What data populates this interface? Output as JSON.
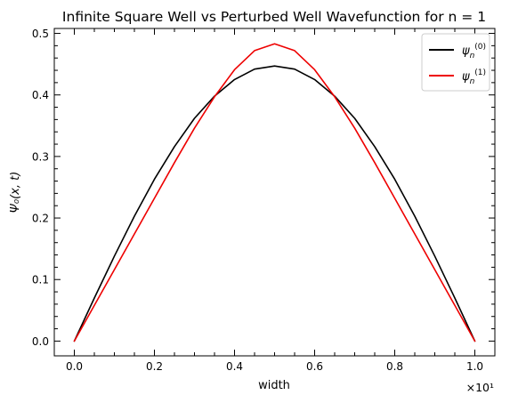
{
  "chart_data": {
    "type": "line",
    "title": "Infinite Square Well vs Perturbed Well Wavefunction for n = 1",
    "xlabel": "width",
    "ylabel": "Ψ₀(x, t)",
    "x_offset_label": "×10¹",
    "xlim": [
      -0.05,
      1.05
    ],
    "ylim": [
      -0.024,
      0.508
    ],
    "x_ticks": [
      0.0,
      0.2,
      0.4,
      0.6,
      0.8,
      1.0
    ],
    "x_tick_labels": [
      "0.0",
      "0.2",
      "0.4",
      "0.6",
      "0.8",
      "1.0"
    ],
    "y_ticks": [
      0.0,
      0.1,
      0.2,
      0.3,
      0.4,
      0.5
    ],
    "y_tick_labels": [
      "0.0",
      "0.1",
      "0.2",
      "0.3",
      "0.4",
      "0.5"
    ],
    "legend_position": "top-right",
    "grid": false,
    "series": [
      {
        "name": "ψn(0)",
        "legend_base": "ψ",
        "legend_sub": "n",
        "legend_sup": "(0)",
        "color": "#000000",
        "x": [
          0.0,
          0.05,
          0.1,
          0.15,
          0.2,
          0.25,
          0.3,
          0.35,
          0.4,
          0.45,
          0.5,
          0.55,
          0.6,
          0.65,
          0.7,
          0.75,
          0.8,
          0.85,
          0.9,
          0.95,
          1.0
        ],
        "y": [
          0.0,
          0.07,
          0.138,
          0.203,
          0.263,
          0.316,
          0.362,
          0.398,
          0.425,
          0.442,
          0.447,
          0.442,
          0.425,
          0.398,
          0.362,
          0.316,
          0.263,
          0.203,
          0.138,
          0.07,
          0.0
        ]
      },
      {
        "name": "ψn(1)",
        "legend_base": "ψ",
        "legend_sub": "n",
        "legend_sup": "(1)",
        "color": "#ee0000",
        "x": [
          0.0,
          0.05,
          0.1,
          0.15,
          0.2,
          0.25,
          0.3,
          0.35,
          0.4,
          0.45,
          0.5,
          0.55,
          0.6,
          0.65,
          0.7,
          0.75,
          0.8,
          0.85,
          0.9,
          0.95,
          1.0
        ],
        "y": [
          0.0,
          0.058,
          0.116,
          0.174,
          0.232,
          0.29,
          0.346,
          0.397,
          0.441,
          0.472,
          0.483,
          0.472,
          0.441,
          0.397,
          0.346,
          0.29,
          0.232,
          0.174,
          0.116,
          0.058,
          0.0
        ]
      }
    ]
  }
}
